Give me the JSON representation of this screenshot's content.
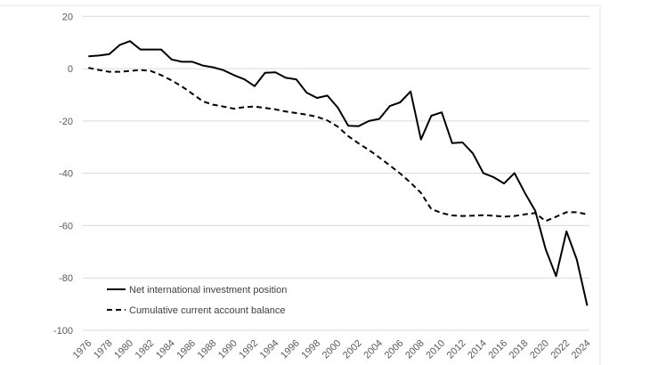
{
  "chart_data": {
    "type": "line",
    "title": "",
    "xlabel": "",
    "ylabel": "",
    "ylim": [
      -100,
      20
    ],
    "yticks": [
      "20",
      "0",
      "-20",
      "-40",
      "-60",
      "-80",
      "-100"
    ],
    "ytick_values": [
      20,
      0,
      -20,
      -40,
      -60,
      -80,
      -100
    ],
    "grid": "horizontal",
    "legend_position": "bottom-left",
    "x": [
      1976,
      1977,
      1978,
      1979,
      1980,
      1981,
      1982,
      1983,
      1984,
      1985,
      1986,
      1987,
      1988,
      1989,
      1990,
      1991,
      1992,
      1993,
      1994,
      1995,
      1996,
      1997,
      1998,
      1999,
      2000,
      2001,
      2002,
      2003,
      2004,
      2005,
      2006,
      2007,
      2008,
      2009,
      2010,
      2011,
      2012,
      2013,
      2014,
      2015,
      2016,
      2017,
      2018,
      2019,
      2020,
      2021,
      2022,
      2023,
      2024
    ],
    "xticks": [
      "1976",
      "1978",
      "1980",
      "1982",
      "1984",
      "1986",
      "1988",
      "1990",
      "1992",
      "1994",
      "1996",
      "1998",
      "2000",
      "2002",
      "2004",
      "2006",
      "2008",
      "2010",
      "2012",
      "2014",
      "2016",
      "2018",
      "2020",
      "2022",
      "2024"
    ],
    "series": [
      {
        "name": "Net international investment position",
        "style": "solid",
        "color": "#000000",
        "values": [
          4.7,
          5.0,
          5.5,
          9.0,
          10.5,
          7.3,
          7.3,
          7.3,
          3.5,
          2.6,
          2.6,
          1.2,
          0.5,
          -0.6,
          -2.5,
          -4.1,
          -6.7,
          -1.6,
          -1.4,
          -3.5,
          -4.1,
          -9.2,
          -11.2,
          -10.3,
          -14.9,
          -21.8,
          -22.0,
          -20.0,
          -19.2,
          -14.3,
          -12.9,
          -8.7,
          -27.1,
          -18.0,
          -16.7,
          -28.5,
          -28.2,
          -32.4,
          -39.9,
          -41.5,
          -43.9,
          -39.9,
          -47.5,
          -54.3,
          -69.0,
          -79.3,
          -62.2,
          -73.0,
          -90.6
        ]
      },
      {
        "name": "Cumulative current account balance",
        "style": "dashed",
        "color": "#000000",
        "values": [
          0.3,
          -0.5,
          -1.2,
          -1.2,
          -0.9,
          -0.5,
          -0.9,
          -2.5,
          -4.5,
          -6.8,
          -9.6,
          -12.5,
          -13.8,
          -14.5,
          -15.3,
          -14.7,
          -14.5,
          -15.0,
          -15.6,
          -16.4,
          -17.0,
          -17.6,
          -18.4,
          -19.8,
          -22.2,
          -25.8,
          -28.6,
          -31.1,
          -34.0,
          -37.0,
          -40.1,
          -43.6,
          -47.5,
          -53.7,
          -55.2,
          -56.1,
          -56.3,
          -56.2,
          -56.0,
          -56.2,
          -56.6,
          -56.3,
          -55.7,
          -55.2,
          -58.3,
          -56.6,
          -54.9,
          -54.9,
          -55.7
        ]
      }
    ]
  },
  "colors": {
    "gridline": "#d9d9d9",
    "tick_text": "#595959",
    "line": "#000000"
  }
}
